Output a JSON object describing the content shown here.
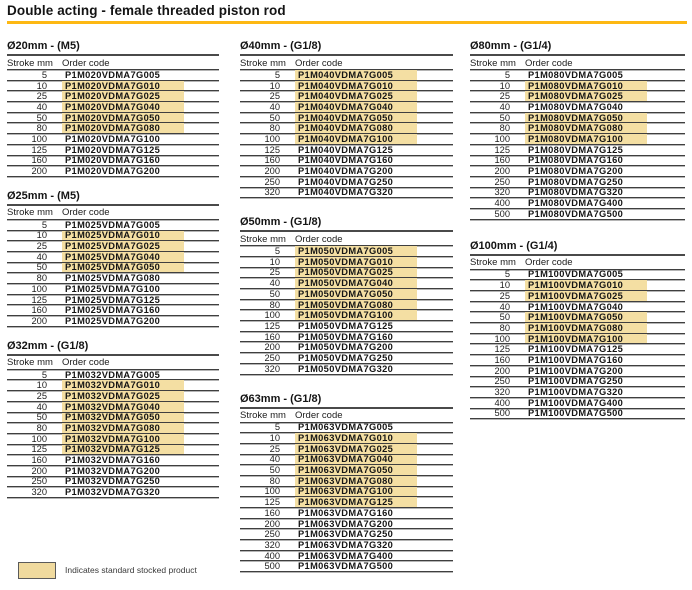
{
  "page": {
    "title": "Double acting - female threaded piston rod",
    "accent_color": "#FDB813",
    "highlight_color": "#F4DFA3"
  },
  "column_headers": {
    "stroke": "Stroke mm",
    "code": "Order code"
  },
  "legend": {
    "swatch_color": "#F0DA9E",
    "label": "Indicates standard stocked product"
  },
  "columns": [
    {
      "sections": [
        {
          "title": "Ø20mm - (M5)",
          "rows": [
            {
              "stroke": "5",
              "code": "P1M020VDMA7G005",
              "hl": false
            },
            {
              "stroke": "10",
              "code": "P1M020VDMA7G010",
              "hl": true
            },
            {
              "stroke": "25",
              "code": "P1M020VDMA7G025",
              "hl": true
            },
            {
              "stroke": "40",
              "code": "P1M020VDMA7G040",
              "hl": true
            },
            {
              "stroke": "50",
              "code": "P1M020VDMA7G050",
              "hl": true
            },
            {
              "stroke": "80",
              "code": "P1M020VDMA7G080",
              "hl": true
            },
            {
              "stroke": "100",
              "code": "P1M020VDMA7G100",
              "hl": false
            },
            {
              "stroke": "125",
              "code": "P1M020VDMA7G125",
              "hl": false
            },
            {
              "stroke": "160",
              "code": "P1M020VDMA7G160",
              "hl": false
            },
            {
              "stroke": "200",
              "code": "P1M020VDMA7G200",
              "hl": false
            }
          ]
        },
        {
          "title": "Ø25mm - (M5)",
          "rows": [
            {
              "stroke": "5",
              "code": "P1M025VDMA7G005",
              "hl": false
            },
            {
              "stroke": "10",
              "code": "P1M025VDMA7G010",
              "hl": true
            },
            {
              "stroke": "25",
              "code": "P1M025VDMA7G025",
              "hl": true
            },
            {
              "stroke": "40",
              "code": "P1M025VDMA7G040",
              "hl": true
            },
            {
              "stroke": "50",
              "code": "P1M025VDMA7G050",
              "hl": true
            },
            {
              "stroke": "80",
              "code": "P1M025VDMA7G080",
              "hl": false
            },
            {
              "stroke": "100",
              "code": "P1M025VDMA7G100",
              "hl": false
            },
            {
              "stroke": "125",
              "code": "P1M025VDMA7G125",
              "hl": false
            },
            {
              "stroke": "160",
              "code": "P1M025VDMA7G160",
              "hl": false
            },
            {
              "stroke": "200",
              "code": "P1M025VDMA7G200",
              "hl": false
            }
          ]
        },
        {
          "title": "Ø32mm - (G1/8)",
          "rows": [
            {
              "stroke": "5",
              "code": "P1M032VDMA7G005",
              "hl": false
            },
            {
              "stroke": "10",
              "code": "P1M032VDMA7G010",
              "hl": true
            },
            {
              "stroke": "25",
              "code": "P1M032VDMA7G025",
              "hl": true
            },
            {
              "stroke": "40",
              "code": "P1M032VDMA7G040",
              "hl": true
            },
            {
              "stroke": "50",
              "code": "P1M032VDMA7G050",
              "hl": true
            },
            {
              "stroke": "80",
              "code": "P1M032VDMA7G080",
              "hl": true
            },
            {
              "stroke": "100",
              "code": "P1M032VDMA7G100",
              "hl": true
            },
            {
              "stroke": "125",
              "code": "P1M032VDMA7G125",
              "hl": true
            },
            {
              "stroke": "160",
              "code": "P1M032VDMA7G160",
              "hl": false
            },
            {
              "stroke": "200",
              "code": "P1M032VDMA7G200",
              "hl": false
            },
            {
              "stroke": "250",
              "code": "P1M032VDMA7G250",
              "hl": false
            },
            {
              "stroke": "320",
              "code": "P1M032VDMA7G320",
              "hl": false
            }
          ]
        }
      ]
    },
    {
      "sections": [
        {
          "title": "Ø40mm - (G1/8)",
          "rows": [
            {
              "stroke": "5",
              "code": "P1M040VDMA7G005",
              "hl": true
            },
            {
              "stroke": "10",
              "code": "P1M040VDMA7G010",
              "hl": true
            },
            {
              "stroke": "25",
              "code": "P1M040VDMA7G025",
              "hl": true
            },
            {
              "stroke": "40",
              "code": "P1M040VDMA7G040",
              "hl": true
            },
            {
              "stroke": "50",
              "code": "P1M040VDMA7G050",
              "hl": true
            },
            {
              "stroke": "80",
              "code": "P1M040VDMA7G080",
              "hl": true
            },
            {
              "stroke": "100",
              "code": "P1M040VDMA7G100",
              "hl": true
            },
            {
              "stroke": "125",
              "code": "P1M040VDMA7G125",
              "hl": false
            },
            {
              "stroke": "160",
              "code": "P1M040VDMA7G160",
              "hl": false
            },
            {
              "stroke": "200",
              "code": "P1M040VDMA7G200",
              "hl": false
            },
            {
              "stroke": "250",
              "code": "P1M040VDMA7G250",
              "hl": false
            },
            {
              "stroke": "320",
              "code": "P1M040VDMA7G320",
              "hl": false
            }
          ]
        },
        {
          "title": "Ø50mm - (G1/8)",
          "rows": [
            {
              "stroke": "5",
              "code": "P1M050VDMA7G005",
              "hl": true
            },
            {
              "stroke": "10",
              "code": "P1M050VDMA7G010",
              "hl": true
            },
            {
              "stroke": "25",
              "code": "P1M050VDMA7G025",
              "hl": true
            },
            {
              "stroke": "40",
              "code": "P1M050VDMA7G040",
              "hl": true
            },
            {
              "stroke": "50",
              "code": "P1M050VDMA7G050",
              "hl": true
            },
            {
              "stroke": "80",
              "code": "P1M050VDMA7G080",
              "hl": true
            },
            {
              "stroke": "100",
              "code": "P1M050VDMA7G100",
              "hl": true
            },
            {
              "stroke": "125",
              "code": "P1M050VDMA7G125",
              "hl": false
            },
            {
              "stroke": "160",
              "code": "P1M050VDMA7G160",
              "hl": false
            },
            {
              "stroke": "200",
              "code": "P1M050VDMA7G200",
              "hl": false
            },
            {
              "stroke": "250",
              "code": "P1M050VDMA7G250",
              "hl": false
            },
            {
              "stroke": "320",
              "code": "P1M050VDMA7G320",
              "hl": false
            }
          ]
        },
        {
          "title": "Ø63mm - (G1/8)",
          "rows": [
            {
              "stroke": "5",
              "code": "P1M063VDMA7G005",
              "hl": false
            },
            {
              "stroke": "10",
              "code": "P1M063VDMA7G010",
              "hl": true
            },
            {
              "stroke": "25",
              "code": "P1M063VDMA7G025",
              "hl": true
            },
            {
              "stroke": "40",
              "code": "P1M063VDMA7G040",
              "hl": true
            },
            {
              "stroke": "50",
              "code": "P1M063VDMA7G050",
              "hl": true
            },
            {
              "stroke": "80",
              "code": "P1M063VDMA7G080",
              "hl": true
            },
            {
              "stroke": "100",
              "code": "P1M063VDMA7G100",
              "hl": true
            },
            {
              "stroke": "125",
              "code": "P1M063VDMA7G125",
              "hl": true
            },
            {
              "stroke": "160",
              "code": "P1M063VDMA7G160",
              "hl": false
            },
            {
              "stroke": "200",
              "code": "P1M063VDMA7G200",
              "hl": false
            },
            {
              "stroke": "250",
              "code": "P1M063VDMA7G250",
              "hl": false
            },
            {
              "stroke": "320",
              "code": "P1M063VDMA7G320",
              "hl": false
            },
            {
              "stroke": "400",
              "code": "P1M063VDMA7G400",
              "hl": false
            },
            {
              "stroke": "500",
              "code": "P1M063VDMA7G500",
              "hl": false
            }
          ]
        }
      ]
    },
    {
      "sections": [
        {
          "title": "Ø80mm - (G1/4)",
          "rows": [
            {
              "stroke": "5",
              "code": "P1M080VDMA7G005",
              "hl": false
            },
            {
              "stroke": "10",
              "code": "P1M080VDMA7G010",
              "hl": true
            },
            {
              "stroke": "25",
              "code": "P1M080VDMA7G025",
              "hl": true
            },
            {
              "stroke": "40",
              "code": "P1M080VDMA7G040",
              "hl": false
            },
            {
              "stroke": "50",
              "code": "P1M080VDMA7G050",
              "hl": true
            },
            {
              "stroke": "80",
              "code": "P1M080VDMA7G080",
              "hl": true
            },
            {
              "stroke": "100",
              "code": "P1M080VDMA7G100",
              "hl": true
            },
            {
              "stroke": "125",
              "code": "P1M080VDMA7G125",
              "hl": false
            },
            {
              "stroke": "160",
              "code": "P1M080VDMA7G160",
              "hl": false
            },
            {
              "stroke": "200",
              "code": "P1M080VDMA7G200",
              "hl": false
            },
            {
              "stroke": "250",
              "code": "P1M080VDMA7G250",
              "hl": false
            },
            {
              "stroke": "320",
              "code": "P1M080VDMA7G320",
              "hl": false
            },
            {
              "stroke": "400",
              "code": "P1M080VDMA7G400",
              "hl": false
            },
            {
              "stroke": "500",
              "code": "P1M080VDMA7G500",
              "hl": false
            }
          ]
        },
        {
          "title": "Ø100mm - (G1/4)",
          "rows": [
            {
              "stroke": "5",
              "code": "P1M100VDMA7G005",
              "hl": false
            },
            {
              "stroke": "10",
              "code": "P1M100VDMA7G010",
              "hl": true
            },
            {
              "stroke": "25",
              "code": "P1M100VDMA7G025",
              "hl": true
            },
            {
              "stroke": "40",
              "code": "P1M100VDMA7G040",
              "hl": false
            },
            {
              "stroke": "50",
              "code": "P1M100VDMA7G050",
              "hl": true
            },
            {
              "stroke": "80",
              "code": "P1M100VDMA7G080",
              "hl": true
            },
            {
              "stroke": "100",
              "code": "P1M100VDMA7G100",
              "hl": true
            },
            {
              "stroke": "125",
              "code": "P1M100VDMA7G125",
              "hl": false
            },
            {
              "stroke": "160",
              "code": "P1M100VDMA7G160",
              "hl": false
            },
            {
              "stroke": "200",
              "code": "P1M100VDMA7G200",
              "hl": false
            },
            {
              "stroke": "250",
              "code": "P1M100VDMA7G250",
              "hl": false
            },
            {
              "stroke": "320",
              "code": "P1M100VDMA7G320",
              "hl": false
            },
            {
              "stroke": "400",
              "code": "P1M100VDMA7G400",
              "hl": false
            },
            {
              "stroke": "500",
              "code": "P1M100VDMA7G500",
              "hl": false
            }
          ]
        }
      ]
    }
  ]
}
